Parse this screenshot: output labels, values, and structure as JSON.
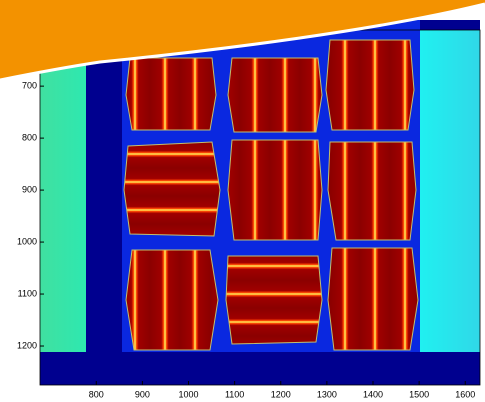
{
  "chart_data": {
    "type": "image",
    "xlim": [
      678,
      1632
    ],
    "xticks": [
      800,
      900,
      1000,
      1100,
      1200,
      1300,
      1400,
      1500,
      1600
    ],
    "ylim": [
      592,
      1275
    ],
    "yticks": [
      700,
      800,
      900,
      1000,
      1100,
      1200
    ],
    "y_reversed": true
  }
}
